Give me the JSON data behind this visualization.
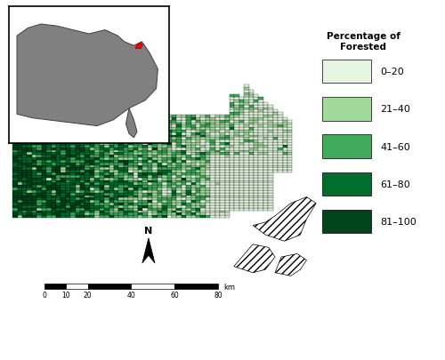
{
  "legend_title": "Percentage of\nForested",
  "legend_labels": [
    "0–20",
    "21–40",
    "41–60",
    "61–80",
    "81–100"
  ],
  "legend_colors": [
    "#e5f5e0",
    "#a1d99b",
    "#41ab5d",
    "#006d2c",
    "#00441b"
  ],
  "scalebar_ticks": [
    0,
    10,
    20,
    40,
    60,
    80
  ],
  "scalebar_unit": "km",
  "background_color": "#ffffff",
  "inset_us_fill": "#808080",
  "inset_ma_fill": "#ff0000",
  "map_edge_color": "#000000",
  "hatch_pattern": "////"
}
